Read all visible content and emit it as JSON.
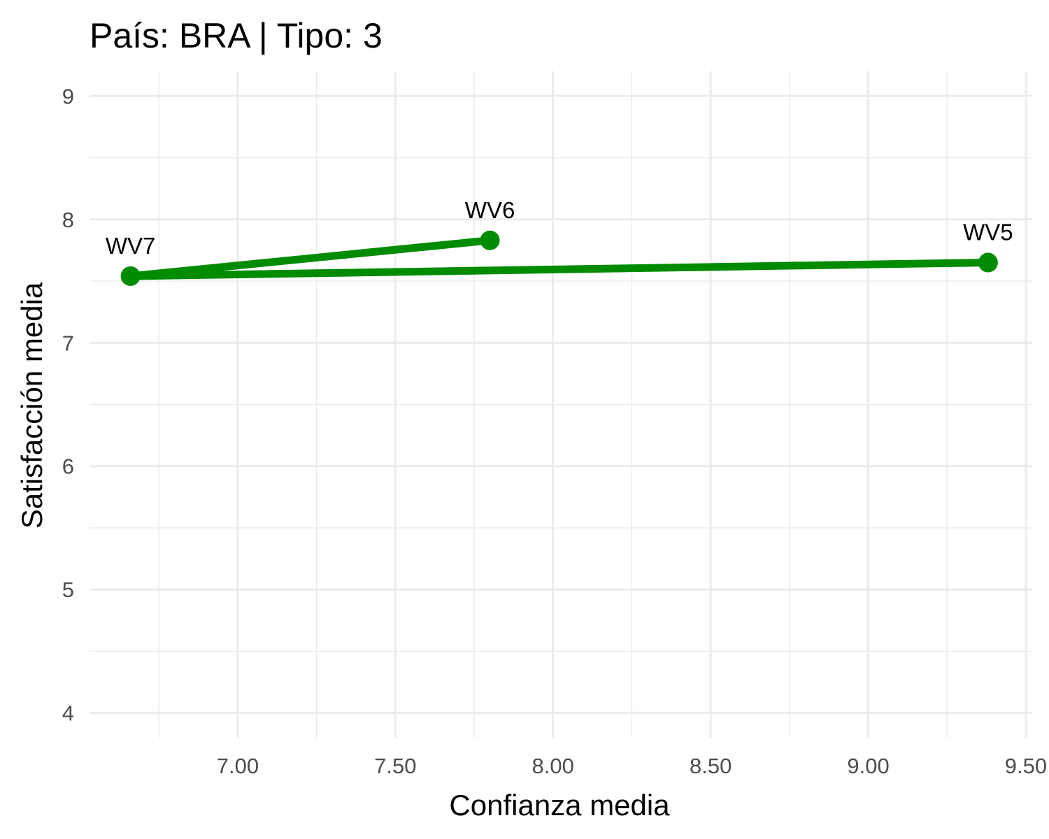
{
  "chart_data": {
    "type": "line",
    "title": "País: BRA | Tipo: 3",
    "xlabel": "Confianza media",
    "ylabel": "Satisfacción media",
    "xlim": [
      6.53,
      9.52
    ],
    "ylim": [
      3.8,
      9.2
    ],
    "x_ticks": [
      7.0,
      7.5,
      8.0,
      8.5,
      9.0,
      9.5
    ],
    "x_tick_labels": [
      "7.00",
      "7.50",
      "8.00",
      "8.50",
      "9.00",
      "9.50"
    ],
    "y_ticks": [
      4,
      5,
      6,
      7,
      8,
      9
    ],
    "y_tick_labels": [
      "4",
      "5",
      "6",
      "7",
      "8",
      "9"
    ],
    "grid": true,
    "series": [
      {
        "color": "#008b00",
        "points": [
          {
            "label": "WV5",
            "x": 9.38,
            "y": 7.65
          },
          {
            "label": "WV7",
            "x": 6.66,
            "y": 7.54
          },
          {
            "label": "WV6",
            "x": 7.8,
            "y": 7.83
          }
        ]
      }
    ]
  }
}
